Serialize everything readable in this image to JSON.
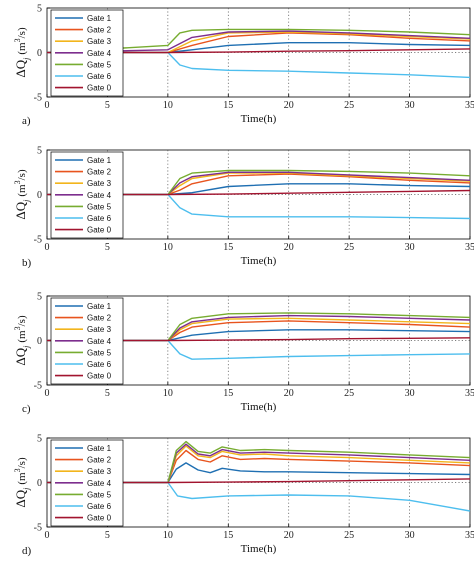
{
  "ylabel_text": "ΔQ",
  "ylabel_sub": "j",
  "ylabel_unit_pre": "(m",
  "ylabel_unit_sup": "3",
  "ylabel_unit_post": "/s)",
  "legend_entries": [
    "Gate 1",
    "Gate 2",
    "Gate 3",
    "Gate 4",
    "Gate 5",
    "Gate 6",
    "Gate 0"
  ],
  "colors": {
    "Gate 1": "#1f6fb2",
    "Gate 2": "#e8541e",
    "Gate 3": "#f2b51c",
    "Gate 4": "#7d2e8e",
    "Gate 5": "#77ac30",
    "Gate 6": "#4dbeee",
    "Gate 0": "#a2142f"
  },
  "chart_data": [
    {
      "type": "line",
      "panel_label": "a)",
      "xlabel": "Time(h)",
      "xlim": [
        0,
        35
      ],
      "ylim": [
        -5,
        5
      ],
      "xticks": [
        0,
        5,
        10,
        15,
        20,
        25,
        30,
        35
      ],
      "yticks": [
        -5,
        0,
        5
      ],
      "grid": "vertical dotted lines at each x tick, dotted line at y=0",
      "legend_position": "top-left",
      "series": [
        {
          "name": "Gate 1",
          "x": [
            0,
            10,
            12,
            15,
            20,
            25,
            30,
            35
          ],
          "y": [
            0,
            0,
            0.3,
            0.8,
            1.1,
            1.1,
            0.9,
            0.8
          ]
        },
        {
          "name": "Gate 2",
          "x": [
            0,
            10,
            12,
            15,
            20,
            25,
            30,
            35
          ],
          "y": [
            0,
            0,
            0.8,
            1.8,
            2.2,
            2.0,
            1.6,
            1.3
          ]
        },
        {
          "name": "Gate 3",
          "x": [
            0,
            10,
            12,
            15,
            20,
            25,
            30,
            35
          ],
          "y": [
            0,
            0,
            1.3,
            2.2,
            2.3,
            2.1,
            1.8,
            1.5
          ]
        },
        {
          "name": "Gate 4",
          "x": [
            0,
            10,
            12,
            15,
            20,
            25,
            30,
            35
          ],
          "y": [
            0,
            0.3,
            1.7,
            2.3,
            2.4,
            2.2,
            1.9,
            1.6
          ]
        },
        {
          "name": "Gate 5",
          "x": [
            0,
            10,
            11,
            12,
            15,
            20,
            25,
            30,
            35
          ],
          "y": [
            0,
            0.8,
            2.2,
            2.5,
            2.6,
            2.6,
            2.5,
            2.3,
            2.0
          ]
        },
        {
          "name": "Gate 6",
          "x": [
            0,
            10,
            11,
            12,
            15,
            20,
            25,
            30,
            35
          ],
          "y": [
            0,
            0,
            -1.4,
            -1.8,
            -2.0,
            -2.1,
            -2.3,
            -2.5,
            -2.8
          ]
        },
        {
          "name": "Gate 0",
          "x": [
            0,
            10,
            15,
            20,
            25,
            30,
            35
          ],
          "y": [
            0,
            0,
            0.05,
            0.15,
            0.2,
            0.3,
            0.4
          ]
        }
      ]
    },
    {
      "type": "line",
      "panel_label": "b)",
      "xlabel": "Time(h)",
      "xlim": [
        0,
        35
      ],
      "ylim": [
        -5,
        5
      ],
      "xticks": [
        0,
        5,
        10,
        15,
        20,
        25,
        30,
        35
      ],
      "yticks": [
        -5,
        0,
        5
      ],
      "grid": "vertical dotted lines at each x tick, dotted line at y=0",
      "legend_position": "top-left",
      "series": [
        {
          "name": "Gate 1",
          "x": [
            0,
            10,
            12,
            15,
            20,
            25,
            30,
            35
          ],
          "y": [
            0,
            0,
            0.2,
            0.9,
            1.2,
            1.2,
            1.0,
            0.9
          ]
        },
        {
          "name": "Gate 2",
          "x": [
            0,
            10,
            11,
            12,
            15,
            20,
            25,
            30,
            35
          ],
          "y": [
            0,
            0,
            0.5,
            1.2,
            2.1,
            2.3,
            2.0,
            1.6,
            1.3
          ]
        },
        {
          "name": "Gate 3",
          "x": [
            0,
            10,
            11,
            12,
            15,
            20,
            25,
            30,
            35
          ],
          "y": [
            0,
            0,
            1.0,
            1.8,
            2.4,
            2.4,
            2.1,
            1.8,
            1.5
          ]
        },
        {
          "name": "Gate 4",
          "x": [
            0,
            10,
            11,
            12,
            15,
            20,
            25,
            30,
            35
          ],
          "y": [
            0,
            0,
            1.3,
            2.0,
            2.5,
            2.5,
            2.2,
            1.9,
            1.6
          ]
        },
        {
          "name": "Gate 5",
          "x": [
            0,
            10,
            11,
            12,
            15,
            20,
            25,
            30,
            35
          ],
          "y": [
            0,
            0,
            1.8,
            2.4,
            2.7,
            2.7,
            2.6,
            2.4,
            2.1
          ]
        },
        {
          "name": "Gate 6",
          "x": [
            0,
            10,
            11,
            12,
            15,
            20,
            25,
            30,
            35
          ],
          "y": [
            0,
            0,
            -1.5,
            -2.2,
            -2.5,
            -2.5,
            -2.5,
            -2.6,
            -2.7
          ]
        },
        {
          "name": "Gate 0",
          "x": [
            0,
            10,
            15,
            20,
            25,
            30,
            35
          ],
          "y": [
            0,
            0,
            0.05,
            0.15,
            0.25,
            0.35,
            0.45
          ]
        }
      ]
    },
    {
      "type": "line",
      "panel_label": "c)",
      "xlabel": "Time(h)",
      "xlim": [
        0,
        35
      ],
      "ylim": [
        -5,
        5
      ],
      "xticks": [
        0,
        5,
        10,
        15,
        20,
        25,
        30,
        35
      ],
      "yticks": [
        -5,
        0,
        5
      ],
      "grid": "vertical dotted lines at each x tick, dotted line at y=0",
      "legend_position": "top-left",
      "series": [
        {
          "name": "Gate 1",
          "x": [
            0,
            10,
            11,
            12,
            15,
            20,
            25,
            30,
            35
          ],
          "y": [
            0,
            0,
            0.3,
            0.6,
            1.0,
            1.2,
            1.2,
            1.1,
            1.0
          ]
        },
        {
          "name": "Gate 2",
          "x": [
            0,
            10,
            11,
            12,
            15,
            20,
            25,
            30,
            35
          ],
          "y": [
            0,
            0,
            0.9,
            1.5,
            2.0,
            2.2,
            2.0,
            1.8,
            1.5
          ]
        },
        {
          "name": "Gate 3",
          "x": [
            0,
            10,
            11,
            12,
            15,
            20,
            25,
            30,
            35
          ],
          "y": [
            0,
            0,
            1.2,
            1.9,
            2.4,
            2.5,
            2.3,
            2.1,
            1.9
          ]
        },
        {
          "name": "Gate 4",
          "x": [
            0,
            10,
            11,
            12,
            15,
            20,
            25,
            30,
            35
          ],
          "y": [
            0,
            0,
            1.4,
            2.1,
            2.6,
            2.8,
            2.7,
            2.5,
            2.3
          ]
        },
        {
          "name": "Gate 5",
          "x": [
            0,
            10,
            11,
            12,
            15,
            20,
            25,
            30,
            35
          ],
          "y": [
            0,
            0,
            1.8,
            2.5,
            3.0,
            3.1,
            3.0,
            2.8,
            2.6
          ]
        },
        {
          "name": "Gate 6",
          "x": [
            0,
            10,
            11,
            12,
            15,
            20,
            25,
            30,
            35
          ],
          "y": [
            0,
            0,
            -1.5,
            -2.1,
            -2.0,
            -1.8,
            -1.7,
            -1.6,
            -1.5
          ]
        },
        {
          "name": "Gate 0",
          "x": [
            0,
            10,
            15,
            20,
            25,
            30,
            35
          ],
          "y": [
            0,
            0,
            0.05,
            0.1,
            0.2,
            0.25,
            0.3
          ]
        }
      ]
    },
    {
      "type": "line",
      "panel_label": "d)",
      "xlabel": "Time(h)",
      "xlim": [
        0,
        35
      ],
      "ylim": [
        -5,
        5
      ],
      "xticks": [
        0,
        5,
        10,
        15,
        20,
        25,
        30,
        35
      ],
      "yticks": [
        -5,
        0,
        5
      ],
      "grid": "vertical dotted lines at each x tick, dotted line at y=0",
      "legend_position": "top-left",
      "series": [
        {
          "name": "Gate 1",
          "x": [
            0,
            10,
            10.7,
            11.5,
            12.5,
            13.5,
            14.5,
            16,
            18,
            20,
            25,
            30,
            35
          ],
          "y": [
            0,
            0,
            1.5,
            2.2,
            1.4,
            1.1,
            1.6,
            1.3,
            1.2,
            1.2,
            1.1,
            1.0,
            0.9
          ]
        },
        {
          "name": "Gate 2",
          "x": [
            0,
            10,
            10.7,
            11.5,
            12.5,
            13.5,
            14.5,
            16,
            18,
            20,
            25,
            30,
            35
          ],
          "y": [
            0,
            0,
            2.5,
            3.6,
            2.6,
            2.3,
            3.0,
            2.6,
            2.7,
            2.6,
            2.4,
            2.2,
            1.9
          ]
        },
        {
          "name": "Gate 3",
          "x": [
            0,
            10,
            10.7,
            11.5,
            12.5,
            13.5,
            14.5,
            16,
            18,
            20,
            25,
            30,
            35
          ],
          "y": [
            0,
            0,
            3.0,
            4.1,
            3.0,
            2.8,
            3.5,
            3.1,
            3.2,
            3.0,
            2.8,
            2.5,
            2.2
          ]
        },
        {
          "name": "Gate 4",
          "x": [
            0,
            10,
            10.7,
            11.5,
            12.5,
            13.5,
            14.5,
            16,
            18,
            20,
            25,
            30,
            35
          ],
          "y": [
            0,
            0,
            3.3,
            4.3,
            3.2,
            3.0,
            3.7,
            3.3,
            3.4,
            3.3,
            3.1,
            2.8,
            2.5
          ]
        },
        {
          "name": "Gate 5",
          "x": [
            0,
            10,
            10.7,
            11.5,
            12.5,
            13.5,
            14.5,
            16,
            18,
            20,
            25,
            30,
            35
          ],
          "y": [
            0,
            0,
            3.6,
            4.6,
            3.5,
            3.3,
            4.0,
            3.6,
            3.7,
            3.6,
            3.4,
            3.1,
            2.8
          ]
        },
        {
          "name": "Gate 6",
          "x": [
            0,
            10,
            10.8,
            12,
            15,
            20,
            25,
            30,
            35
          ],
          "y": [
            0,
            0,
            -1.5,
            -1.8,
            -1.5,
            -1.4,
            -1.5,
            -2.0,
            -3.2
          ]
        },
        {
          "name": "Gate 0",
          "x": [
            0,
            10,
            15,
            20,
            25,
            30,
            35
          ],
          "y": [
            0,
            0,
            0.05,
            0.1,
            0.2,
            0.3,
            0.4
          ]
        }
      ]
    }
  ]
}
